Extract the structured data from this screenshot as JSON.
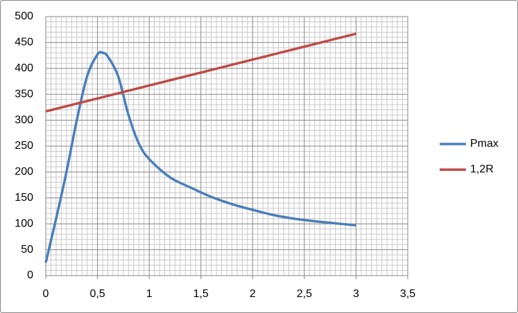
{
  "chart_data": {
    "type": "line",
    "x": [
      0,
      0.1,
      0.2,
      0.3,
      0.4,
      0.5,
      0.55,
      0.6,
      0.7,
      0.8,
      0.9,
      1.0,
      1.2,
      1.4,
      1.6,
      1.8,
      2.0,
      2.2,
      2.4,
      2.6,
      2.8,
      3.0
    ],
    "series": [
      {
        "name": "Pmax",
        "color": "#4a7ebb",
        "x": [
          0,
          0.1,
          0.2,
          0.3,
          0.4,
          0.5,
          0.55,
          0.6,
          0.7,
          0.8,
          0.9,
          1.0,
          1.2,
          1.4,
          1.6,
          1.8,
          2.0,
          2.2,
          2.4,
          2.6,
          2.8,
          3.0
        ],
        "values": [
          25,
          110,
          200,
          300,
          385,
          427,
          430,
          423,
          385,
          310,
          255,
          225,
          190,
          170,
          152,
          138,
          127,
          117,
          110,
          105,
          101,
          97
        ]
      },
      {
        "name": "1,2R",
        "color": "#be4b48",
        "x": [
          0,
          0.5,
          1,
          1.5,
          2,
          2.5,
          3
        ],
        "values": [
          317,
          342,
          367,
          392,
          417,
          442,
          467
        ]
      }
    ],
    "xlim": [
      0,
      3.5
    ],
    "xticks": [
      0,
      {
        "value": 0.5,
        "label": "0,5"
      },
      1,
      {
        "value": 1.5,
        "label": "1,5"
      },
      2,
      {
        "value": 2.5,
        "label": "2,5"
      },
      3,
      {
        "value": 3.5,
        "label": "3,5"
      }
    ],
    "ylim": [
      0,
      500
    ],
    "yticks": [
      0,
      50,
      100,
      150,
      200,
      250,
      300,
      350,
      400,
      450,
      500
    ],
    "grid": true,
    "minor_grid": true,
    "legend": "right"
  }
}
